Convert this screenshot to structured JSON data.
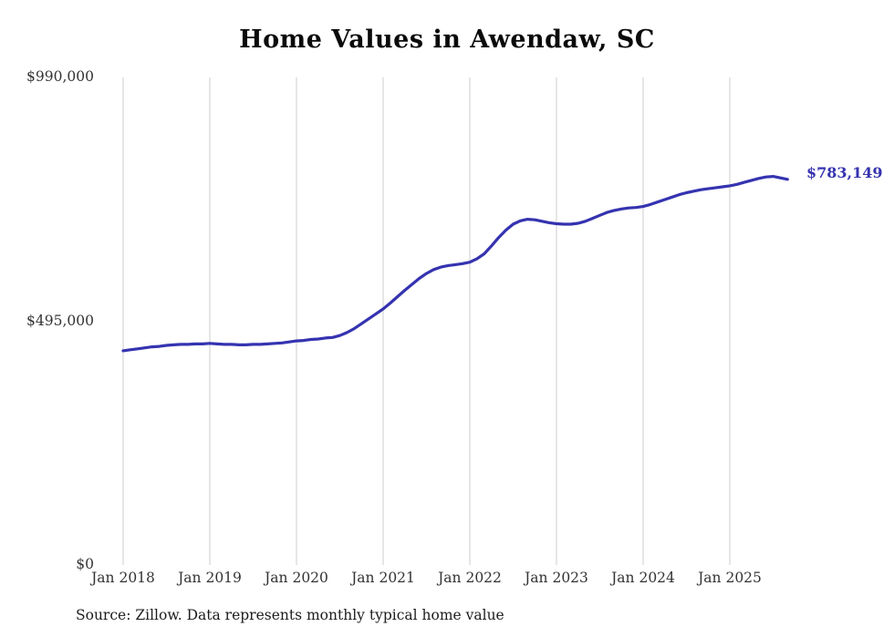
{
  "chart": {
    "title": "Home Values in Awendaw, SC",
    "source_note": "Source: Zillow. Data represents monthly typical home value",
    "end_label": "$783,149",
    "line_color": "#3533b0",
    "grid_color": "#cccccc",
    "text_color": "#333333",
    "background_color": "#ffffff"
  },
  "chart_data": {
    "type": "line",
    "title": "Home Values in Awendaw, SC",
    "xlabel": "",
    "ylabel": "",
    "legend_position": "none",
    "grid": "vertical-only",
    "ylim": [
      0,
      990000
    ],
    "y_ticks": [
      {
        "value": 0,
        "label": "$0"
      },
      {
        "value": 495000,
        "label": "$495,000"
      },
      {
        "value": 990000,
        "label": "$990,000"
      }
    ],
    "x_tick_labels": [
      "Jan 2018",
      "Jan 2019",
      "Jan 2020",
      "Jan 2021",
      "Jan 2022",
      "Jan 2023",
      "Jan 2024",
      "Jan 2025"
    ],
    "x_tick_month_indices": [
      0,
      12,
      24,
      36,
      48,
      60,
      72,
      84
    ],
    "start_month": "Jan 2018",
    "frequency": "monthly",
    "final_value": 783149,
    "final_value_label": "$783,149",
    "series": [
      {
        "name": "Typical home value",
        "values": [
          435000,
          437000,
          439000,
          441000,
          443000,
          444000,
          446000,
          447000,
          448000,
          448000,
          449000,
          449000,
          450000,
          449000,
          448000,
          448000,
          447000,
          447000,
          448000,
          448000,
          449000,
          450000,
          451000,
          453000,
          455000,
          456000,
          458000,
          459000,
          461000,
          462000,
          466000,
          472000,
          480000,
          490000,
          500000,
          510000,
          520000,
          532000,
          545000,
          558000,
          570000,
          582000,
          592000,
          600000,
          605000,
          608000,
          610000,
          612000,
          615000,
          622000,
          632000,
          648000,
          665000,
          680000,
          692000,
          699000,
          702000,
          701000,
          698000,
          695000,
          693000,
          692000,
          692000,
          694000,
          698000,
          704000,
          710000,
          716000,
          720000,
          723000,
          725000,
          726000,
          728000,
          732000,
          737000,
          742000,
          747000,
          752000,
          756000,
          759000,
          762000,
          764000,
          766000,
          768000,
          770000,
          773000,
          777000,
          781000,
          785000,
          788000,
          789000,
          786000,
          783149
        ]
      }
    ]
  }
}
